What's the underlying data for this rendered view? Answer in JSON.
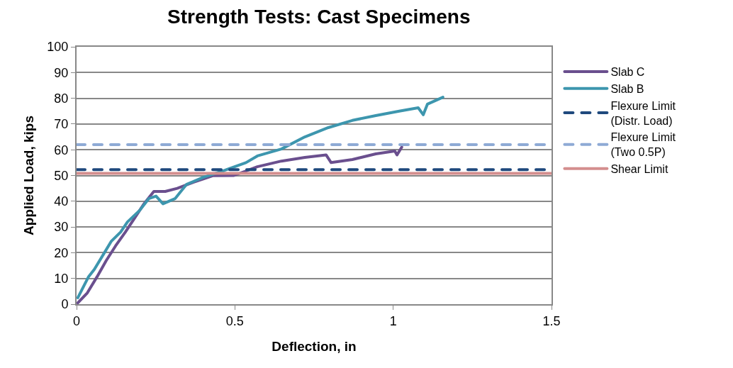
{
  "chart_data": {
    "type": "line",
    "title": "Strength Tests: Cast Specimens",
    "xlabel": "Deflection, in",
    "ylabel": "Applied Load, kips",
    "xlim": [
      0,
      1.5
    ],
    "xticks": [
      0,
      0.5,
      1,
      1.5
    ],
    "ylim": [
      0,
      100
    ],
    "yticks": [
      0,
      10,
      20,
      30,
      40,
      50,
      60,
      70,
      80,
      90,
      100
    ],
    "grid": "y",
    "legend": "right",
    "marker": "none",
    "line_style": "solid",
    "series": [
      {
        "name": "Slab C",
        "color": "#6a4f8e",
        "x": [
          0.004,
          0.034,
          0.065,
          0.094,
          0.123,
          0.154,
          0.184,
          0.213,
          0.244,
          0.28,
          0.318,
          0.37,
          0.43,
          0.497,
          0.571,
          0.647,
          0.721,
          0.788,
          0.804,
          0.871,
          0.945,
          1.005,
          1.012,
          1.027
        ],
        "values": [
          0.5,
          4.4,
          10.7,
          17,
          22.6,
          28,
          33.6,
          39,
          43.8,
          43.8,
          45,
          47.4,
          49.9,
          50,
          53.4,
          55.6,
          57,
          58,
          55,
          56.2,
          58.4,
          59.5,
          58,
          61
        ]
      },
      {
        "name": "Slab B",
        "color": "#3d96ae",
        "x": [
          0.004,
          0.038,
          0.056,
          0.087,
          0.11,
          0.139,
          0.161,
          0.199,
          0.228,
          0.251,
          0.273,
          0.311,
          0.347,
          0.4,
          0.468,
          0.535,
          0.571,
          0.647,
          0.721,
          0.795,
          0.871,
          0.945,
          1.019,
          1.079,
          1.095,
          1.108,
          1.157
        ],
        "values": [
          2.5,
          10.7,
          13.5,
          19.8,
          24.5,
          28,
          32,
          36.4,
          41,
          42,
          39,
          41,
          46.5,
          49.3,
          52,
          55,
          57.6,
          60.3,
          65,
          68.6,
          71.4,
          73.3,
          75,
          76.3,
          73.6,
          77.7,
          80.4
        ]
      },
      {
        "name": "Flexure Limit\n(Distr. Load)",
        "color": "#1f497d",
        "line_style": "dashed",
        "x": [
          0,
          1.5
        ],
        "values": [
          52.3,
          52.3
        ]
      },
      {
        "name": "Flexure Limit\n(Two 0.5P)",
        "color": "#8eaad5",
        "line_style": "dashed",
        "x": [
          0,
          1.5
        ],
        "values": [
          62,
          62
        ]
      },
      {
        "name": "Shear Limit",
        "color": "#d48e8e",
        "x": [
          0,
          1.5
        ],
        "values": [
          50.8,
          50.8
        ]
      }
    ]
  }
}
